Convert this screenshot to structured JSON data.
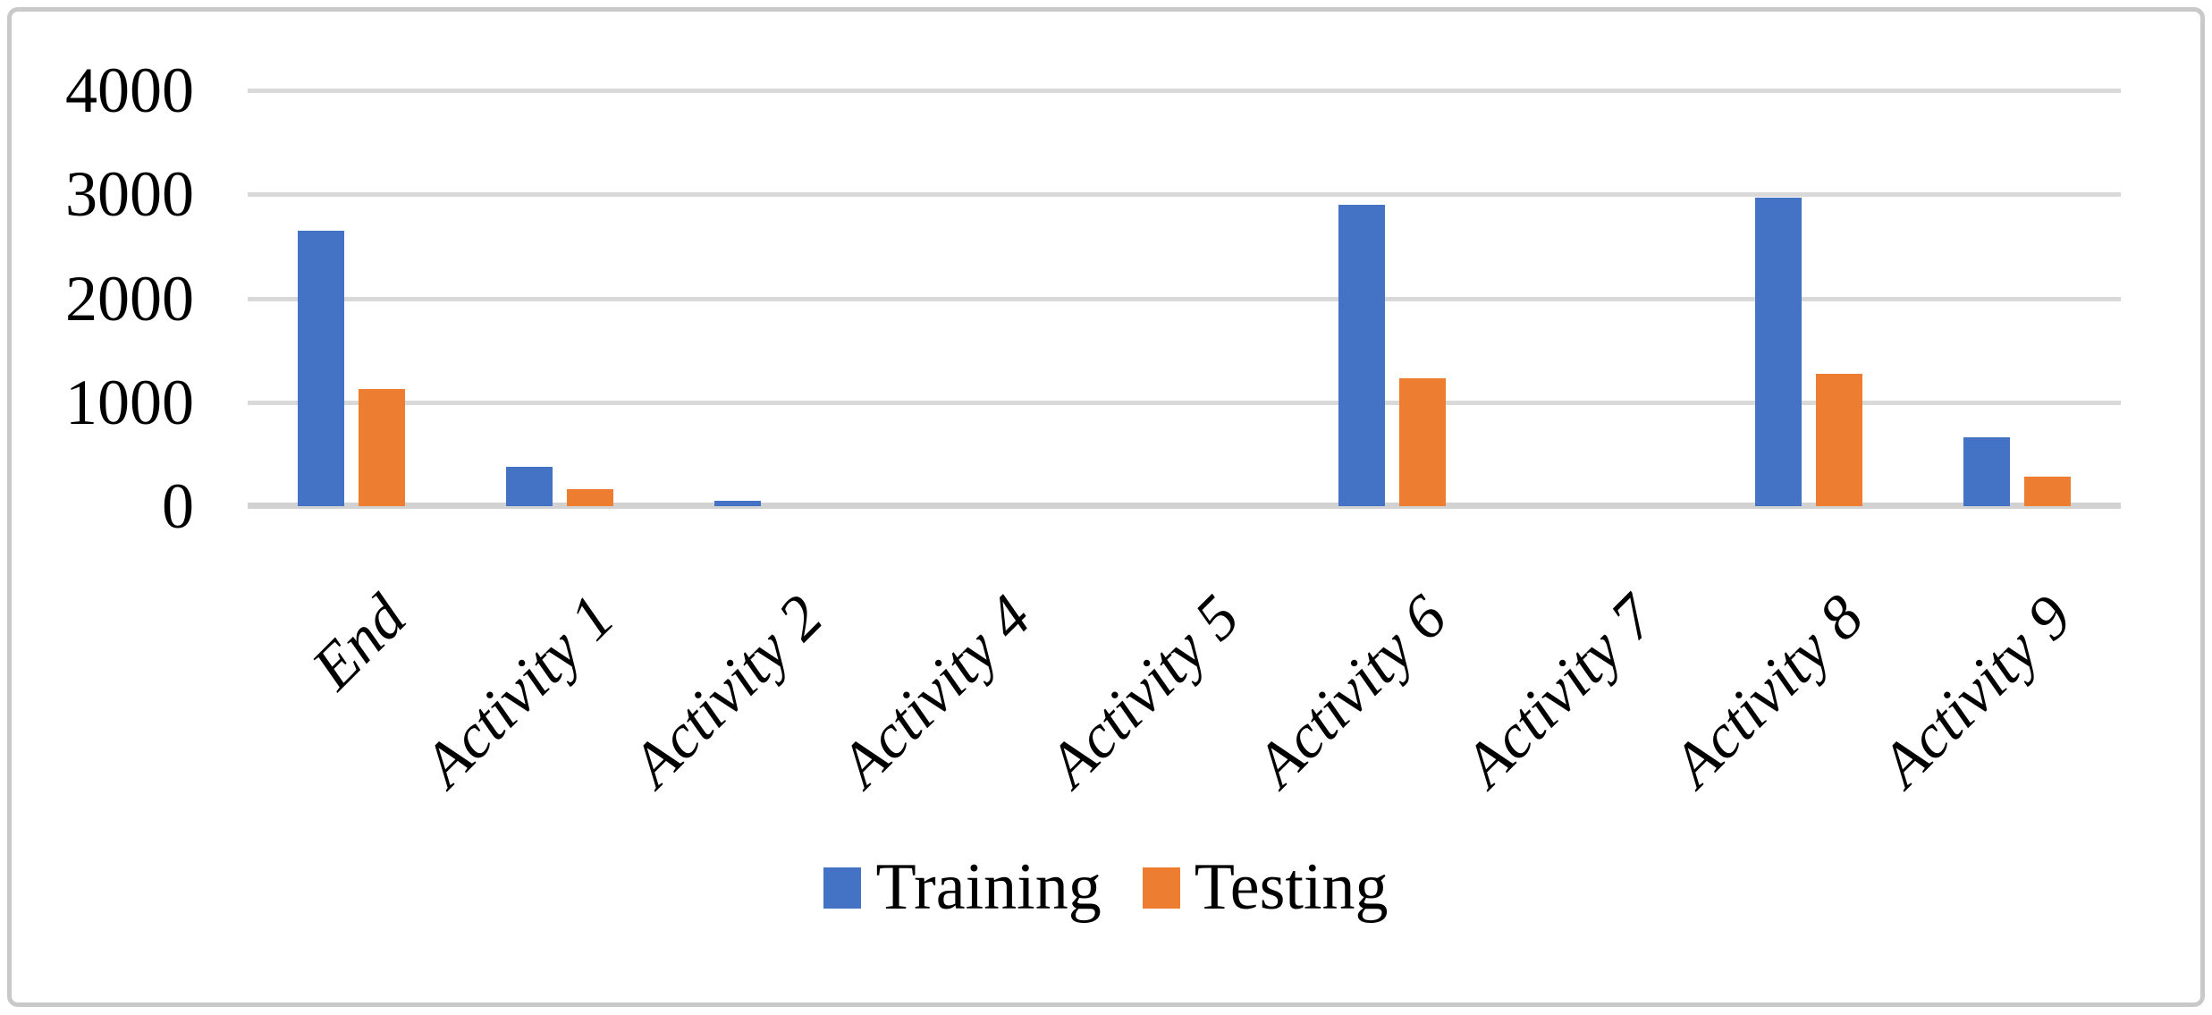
{
  "figure": {
    "background_color": "#ffffff",
    "border_color": "#c9c9c9",
    "gridline_color": "#d9d9d9",
    "axis_line_color": "#d2d2d2",
    "text_color": "#000000"
  },
  "chart_data": {
    "type": "bar",
    "title": "",
    "xlabel": "",
    "ylabel": "",
    "categories": [
      "End",
      "Activity 1",
      "Activity 2",
      "Activity 4",
      "Activity 5",
      "Activity 6",
      "Activity 7",
      "Activity 8",
      "Activity 9"
    ],
    "series": [
      {
        "name": "Training",
        "color": "#4472C4",
        "values": [
          2650,
          380,
          50,
          0,
          0,
          2900,
          0,
          2970,
          660
        ]
      },
      {
        "name": "Testing",
        "color": "#ED7D31",
        "values": [
          1130,
          160,
          0,
          0,
          0,
          1230,
          0,
          1270,
          280
        ]
      }
    ],
    "ylim": [
      0,
      4000
    ],
    "yticks": [
      0,
      1000,
      2000,
      3000,
      4000
    ],
    "grid": true,
    "x_label_rotation_deg": -45,
    "legend_position": "bottom-center"
  }
}
